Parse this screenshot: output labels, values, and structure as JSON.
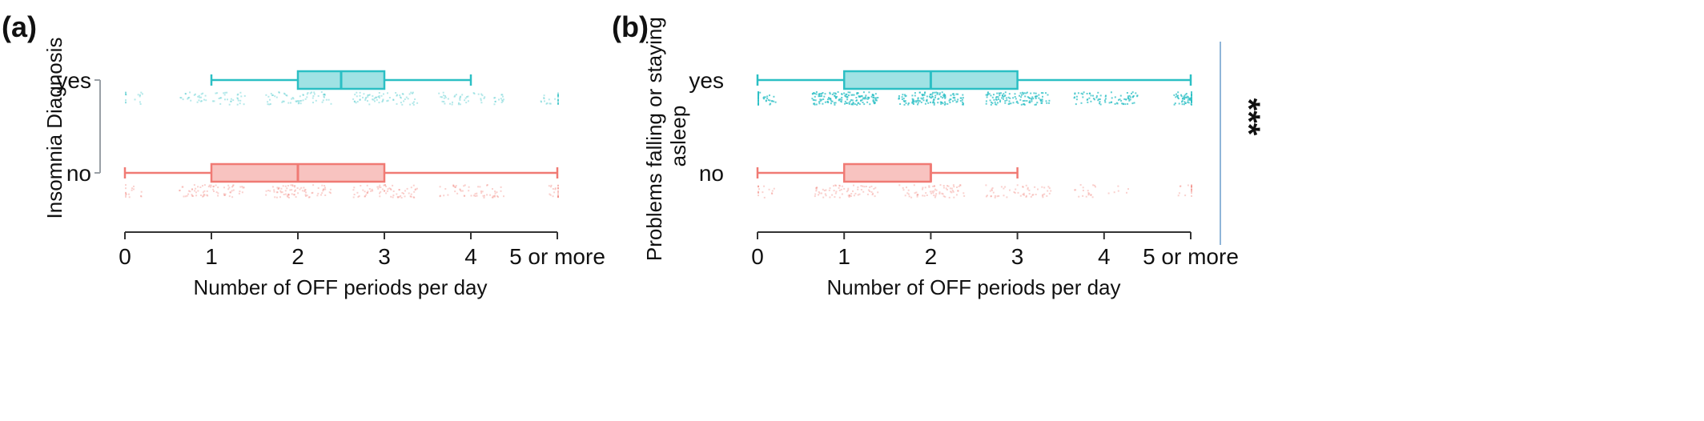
{
  "chart_data": [
    {
      "type": "box",
      "panel_label": "(a)",
      "title": "",
      "xlabel": "Number of OFF periods per day",
      "ylabel": "Insomnia Diagnosis",
      "categories": [
        "yes",
        "no"
      ],
      "x_ticks": [
        0,
        1,
        2,
        3,
        4,
        5
      ],
      "x_tick_labels": [
        "0",
        "1",
        "2",
        "3",
        "4",
        "5 or more"
      ],
      "xlim": [
        0,
        5
      ],
      "significance": "",
      "series": [
        {
          "category": "yes",
          "color": "#2bbfc4",
          "whisker_low": 1,
          "q1": 2,
          "median": 2.5,
          "q3": 3,
          "whisker_high": 4,
          "jitter_density": [
            0.1,
            0.35,
            0.4,
            0.45,
            0.35,
            0.2
          ],
          "jitter_opacity": 0.35
        },
        {
          "category": "no",
          "color": "#f07a74",
          "whisker_low": 0,
          "q1": 1,
          "median": 2,
          "q3": 3,
          "whisker_high": 5,
          "jitter_density": [
            0.1,
            0.45,
            0.5,
            0.45,
            0.35,
            0.15
          ],
          "jitter_opacity": 0.35
        }
      ]
    },
    {
      "type": "box",
      "panel_label": "(b)",
      "title": "",
      "xlabel": "Number of OFF periods per day",
      "ylabel": "Problems falling or staying asleep",
      "ylabel_lines": [
        "Problems falling or staying",
        "asleep"
      ],
      "categories": [
        "yes",
        "no"
      ],
      "x_ticks": [
        0,
        1,
        2,
        3,
        4,
        5
      ],
      "x_tick_labels": [
        "0",
        "1",
        "2",
        "3",
        "4",
        "5 or more"
      ],
      "xlim": [
        0,
        5
      ],
      "significance": "***",
      "series": [
        {
          "category": "yes",
          "color": "#2bbfc4",
          "whisker_low": 0,
          "q1": 1,
          "median": 2,
          "q3": 3,
          "whisker_high": 5,
          "jitter_density": [
            0.3,
            1.0,
            0.85,
            0.75,
            0.5,
            0.4
          ],
          "jitter_opacity": 0.75
        },
        {
          "category": "no",
          "color": "#f07a74",
          "whisker_low": 0,
          "q1": 1,
          "median": 2,
          "q3": 2,
          "whisker_high": 3,
          "jitter_density": [
            0.1,
            0.45,
            0.45,
            0.35,
            0.15,
            0.12
          ],
          "jitter_opacity": 0.35
        }
      ]
    }
  ]
}
